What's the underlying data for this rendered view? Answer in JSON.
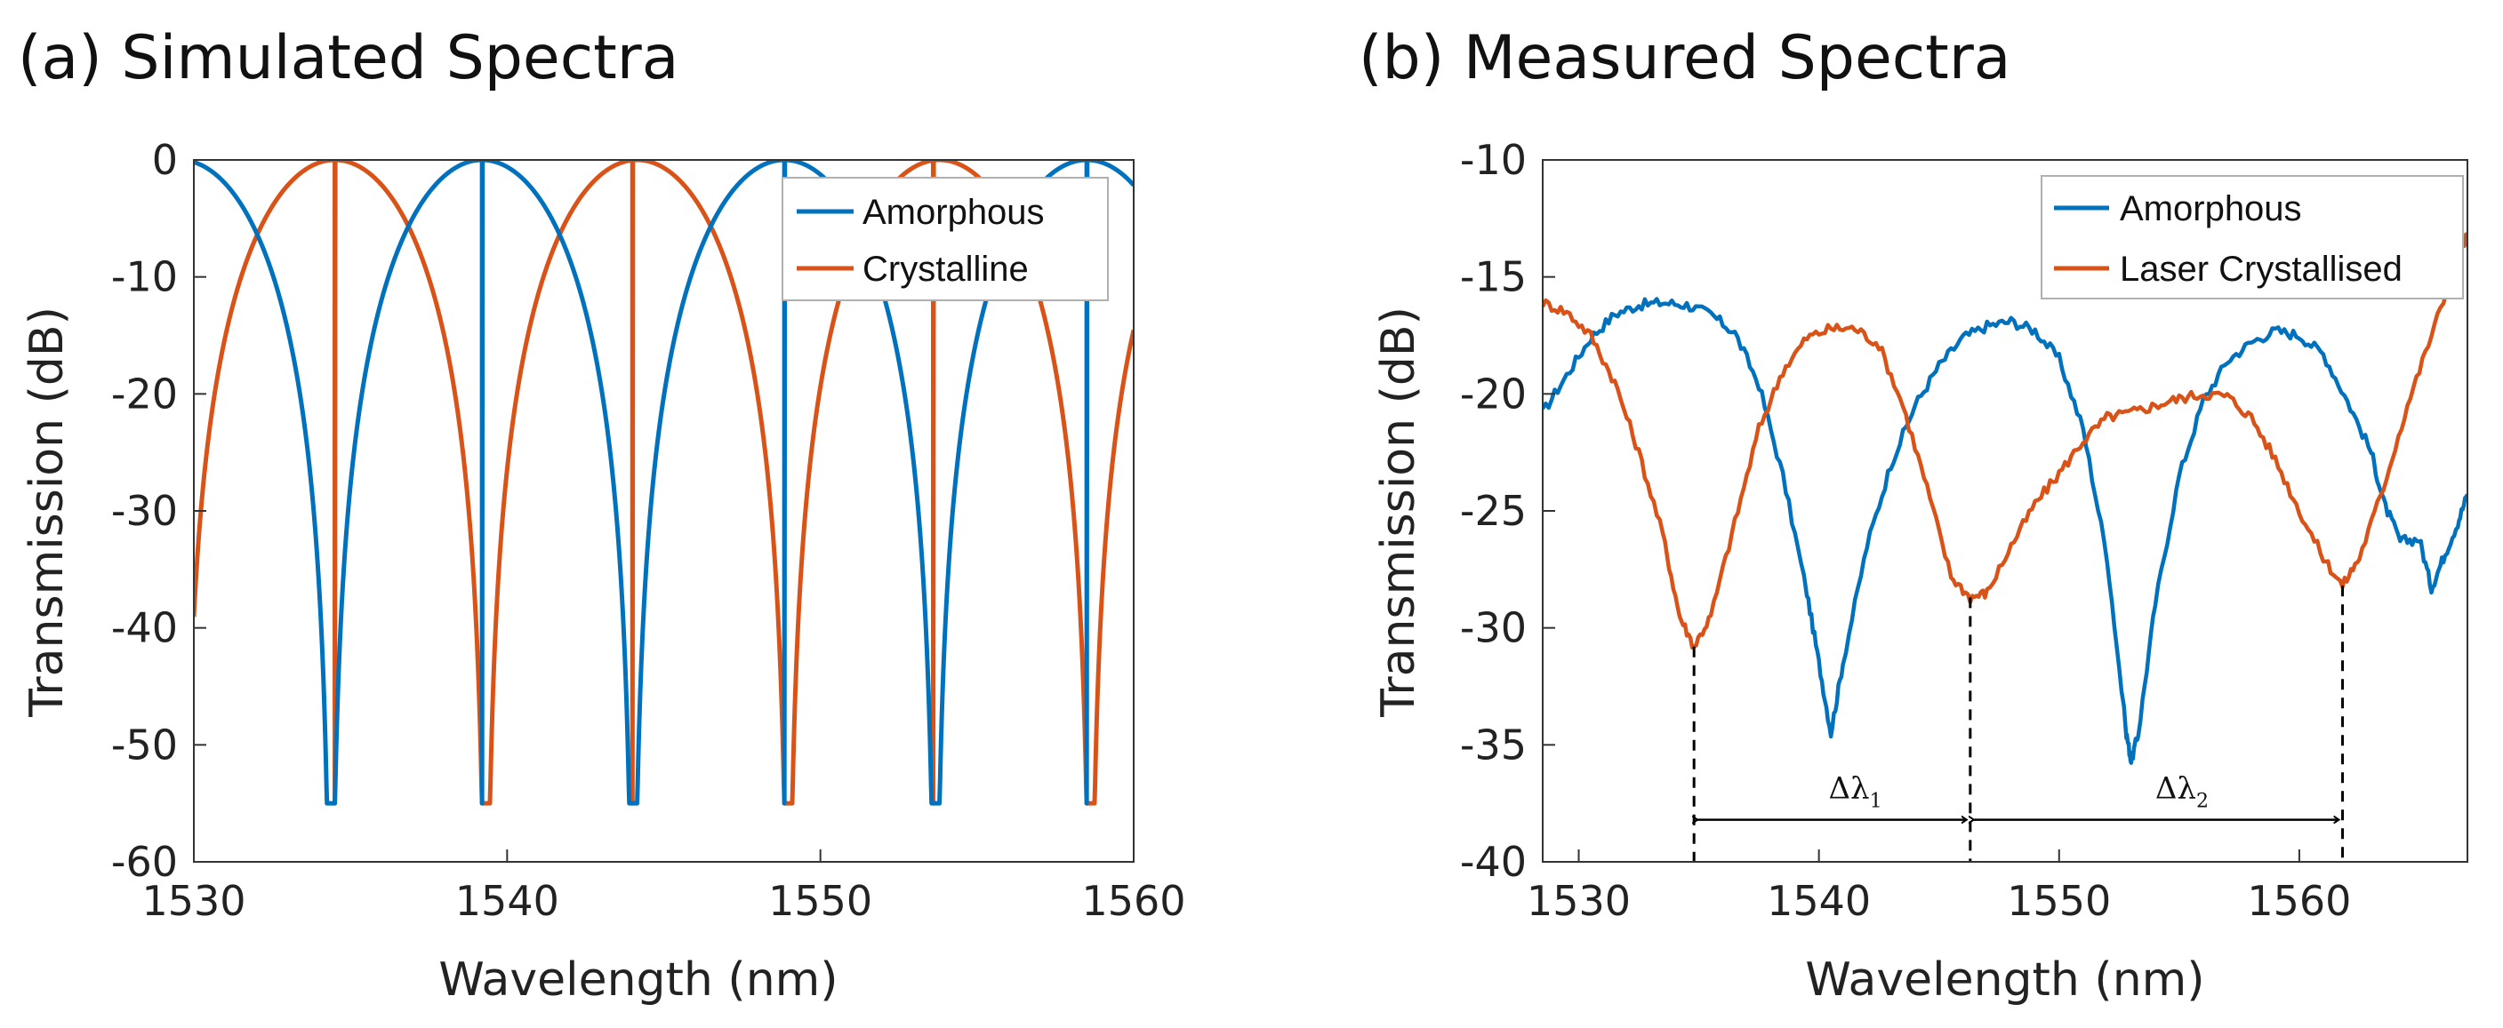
{
  "chart_data": [
    {
      "type": "line",
      "title": "(a) Simulated Spectra",
      "xlabel": "Wavelength (nm)",
      "ylabel": "Transmission (dB)",
      "xlim": [
        1530,
        1560
      ],
      "ylim": [
        -60,
        0
      ],
      "xticks": [
        "1530",
        "1540",
        "1550",
        "1560"
      ],
      "yticks": [
        "0",
        "-10",
        "-20",
        "-30",
        "-40",
        "-50",
        "-60"
      ],
      "grid": false,
      "legend": "top-right",
      "series": [
        {
          "name": "Amorphous",
          "color": "#0072BD",
          "model": {
            "kind": "periodic-notch",
            "period": 9.65,
            "notches": [
              1539.2,
              1548.85,
              1558.5
            ],
            "floor": -55
          }
        },
        {
          "name": "Crystalline",
          "color": "#D95319",
          "model": {
            "kind": "periodic-notch",
            "period": 9.65,
            "notches": [
              1534.5,
              1544.0,
              1553.6
            ],
            "floor": -55
          }
        }
      ]
    },
    {
      "type": "line",
      "title": "(b) Measured Spectra",
      "xlabel": "Wavelength (nm)",
      "ylabel": "Transmission (dB)",
      "xlim": [
        1528.5,
        1567
      ],
      "ylim": [
        -40,
        -10
      ],
      "xticks": [
        "1530",
        "1540",
        "1550",
        "1560"
      ],
      "yticks": [
        "-10",
        "-15",
        "-20",
        "-25",
        "-30",
        "-35",
        "-40"
      ],
      "grid": false,
      "legend": "top-right",
      "series": [
        {
          "name": "Amorphous",
          "color": "#0072BD",
          "points": [
            [
              1528.5,
              -20.8
            ],
            [
              1529.5,
              -19.2
            ],
            [
              1530.5,
              -17.6
            ],
            [
              1531.5,
              -16.6
            ],
            [
              1532.5,
              -16.2
            ],
            [
              1533.5,
              -16.1
            ],
            [
              1534.5,
              -16.2
            ],
            [
              1535.5,
              -16.6
            ],
            [
              1536.5,
              -17.4
            ],
            [
              1537.5,
              -19.6
            ],
            [
              1538.5,
              -23.5
            ],
            [
              1539.5,
              -28.5
            ],
            [
              1540.0,
              -31.5
            ],
            [
              1540.5,
              -34.5
            ],
            [
              1541.0,
              -31.5
            ],
            [
              1542.0,
              -26.5
            ],
            [
              1543.0,
              -23.0
            ],
            [
              1544.0,
              -20.5
            ],
            [
              1545.0,
              -18.8
            ],
            [
              1546.0,
              -17.6
            ],
            [
              1547.0,
              -17.1
            ],
            [
              1548.0,
              -16.9
            ],
            [
              1549.0,
              -17.3
            ],
            [
              1550.0,
              -18.5
            ],
            [
              1551.0,
              -21.5
            ],
            [
              1552.0,
              -27.0
            ],
            [
              1552.8,
              -34.5
            ],
            [
              1553.0,
              -35.7
            ],
            [
              1553.3,
              -34.5
            ],
            [
              1554.0,
              -29.0
            ],
            [
              1555.0,
              -23.5
            ],
            [
              1556.0,
              -20.3
            ],
            [
              1557.0,
              -18.6
            ],
            [
              1558.0,
              -17.8
            ],
            [
              1559.0,
              -17.3
            ],
            [
              1560.0,
              -17.5
            ],
            [
              1561.0,
              -18.3
            ],
            [
              1562.0,
              -20.3
            ],
            [
              1563.0,
              -22.5
            ],
            [
              1563.5,
              -24.6
            ],
            [
              1564.2,
              -26.3
            ],
            [
              1565.0,
              -26.2
            ],
            [
              1565.5,
              -28.3
            ],
            [
              1566.0,
              -27.0
            ],
            [
              1566.6,
              -25.5
            ],
            [
              1567.0,
              -24.3
            ]
          ]
        },
        {
          "name": "Laser Crystallised",
          "color": "#D95319",
          "points": [
            [
              1528.5,
              -16.1
            ],
            [
              1529.5,
              -16.5
            ],
            [
              1530.5,
              -17.5
            ],
            [
              1531.5,
              -19.5
            ],
            [
              1532.5,
              -22.5
            ],
            [
              1533.5,
              -26.0
            ],
            [
              1534.2,
              -29.5
            ],
            [
              1534.8,
              -30.8
            ],
            [
              1535.5,
              -29.5
            ],
            [
              1536.5,
              -25.5
            ],
            [
              1537.5,
              -21.5
            ],
            [
              1538.5,
              -19.0
            ],
            [
              1539.5,
              -17.6
            ],
            [
              1540.5,
              -17.2
            ],
            [
              1541.5,
              -17.2
            ],
            [
              1542.5,
              -17.9
            ],
            [
              1543.5,
              -20.5
            ],
            [
              1544.5,
              -24.0
            ],
            [
              1545.5,
              -27.8
            ],
            [
              1546.3,
              -28.7
            ],
            [
              1547.0,
              -28.5
            ],
            [
              1548.0,
              -26.5
            ],
            [
              1549.0,
              -24.7
            ],
            [
              1550.0,
              -23.4
            ],
            [
              1551.0,
              -22.0
            ],
            [
              1552.0,
              -21.0
            ],
            [
              1553.0,
              -20.8
            ],
            [
              1554.0,
              -20.5
            ],
            [
              1555.0,
              -20.2
            ],
            [
              1556.0,
              -20.0
            ],
            [
              1557.0,
              -20.1
            ],
            [
              1558.0,
              -21.0
            ],
            [
              1559.0,
              -22.8
            ],
            [
              1560.0,
              -25.0
            ],
            [
              1561.0,
              -27.0
            ],
            [
              1561.8,
              -28.2
            ],
            [
              1562.5,
              -27.0
            ],
            [
              1563.5,
              -24.0
            ],
            [
              1564.5,
              -20.5
            ],
            [
              1565.5,
              -17.5
            ],
            [
              1566.5,
              -14.5
            ],
            [
              1567.0,
              -13.2
            ]
          ]
        }
      ],
      "annotations": {
        "markers": [
          1534.8,
          1546.3,
          1561.8
        ],
        "arrow_y": -38.2,
        "labels": [
          {
            "text": "Δλ",
            "sub": "1",
            "x": 1540.4
          },
          {
            "text": "Δλ",
            "sub": "2",
            "x": 1554.0
          }
        ]
      }
    }
  ]
}
